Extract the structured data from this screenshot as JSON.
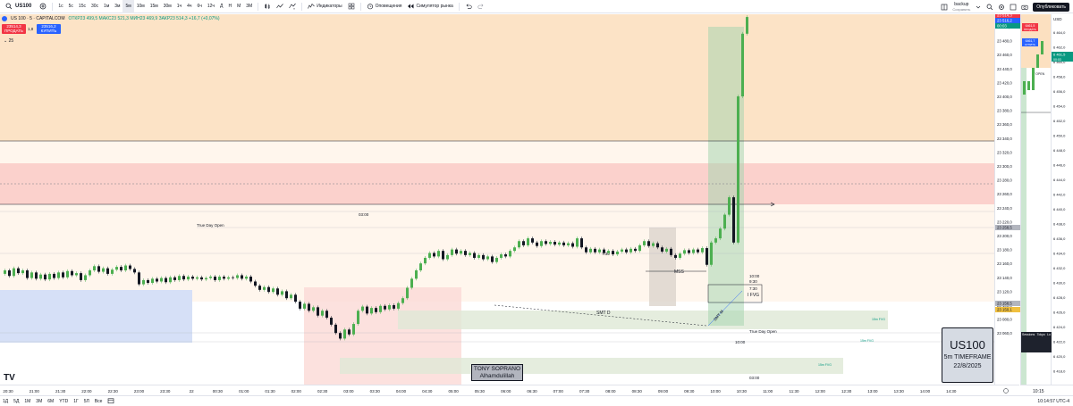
{
  "toolbar": {
    "symbol": "US100",
    "timeframes": [
      "1с",
      "5с",
      "15с",
      "30с",
      "1м",
      "3м",
      "5м",
      "10м",
      "15м",
      "30м",
      "1ч",
      "4ч",
      "6ч",
      "12ч",
      "Д",
      "Н",
      "М",
      "3М"
    ],
    "active_timeframe": "5м",
    "indicators_label": "Индикаторы",
    "alerts_label": "Оповещения",
    "replay_label": "Симулятор рынка",
    "layout_name": "backup",
    "layout_status": "Сохранить",
    "publish_label": "Опубликовать"
  },
  "legend": {
    "title": "US 100 · 5 · CAPITALCOM",
    "ohlc": "ОТКР23 499,5  МАКС23 521,3  МИН23 469,9  ЗАКР23 514,3  +16,7 (+0,07%)"
  },
  "trade": {
    "sell_price": "23514,3",
    "sell_label": "ПРОДАТЬ",
    "buy_price": "23516,2",
    "buy_label": "КУПИТЬ",
    "spread": "1,8",
    "indicators_count": "25"
  },
  "price_axis": {
    "currency": "USD",
    "ticks": [
      "23 500,0",
      "23 480,0",
      "23 460,0",
      "23 440,0",
      "23 420,0",
      "23 400,0",
      "23 380,0",
      "23 360,0",
      "23 340,0",
      "23 320,0",
      "23 300,0",
      "23 280,0",
      "23 260,0",
      "23 240,0",
      "23 220,0",
      "23 200,0",
      "23 180,0",
      "23 160,0",
      "23 140,0",
      "23 120,0",
      "23 100,0",
      "23 080,0",
      "23 060,0"
    ],
    "label_sell": "23 514,3",
    "label_buy": "23 516,2",
    "label_timer": "00:03",
    "label_mid": "23 258,5",
    "label_low1": "23 158,5",
    "label_low2": "23 150,1"
  },
  "time_axis": {
    "ticks": [
      "20:30",
      "21:00",
      "21:30",
      "22:00",
      "22:30",
      "23:00",
      "23:30",
      "22",
      "00:30",
      "01:00",
      "01:30",
      "02:00",
      "02:30",
      "03:00",
      "03:30",
      "04:00",
      "04:30",
      "05:00",
      "05:30",
      "06:00",
      "06:30",
      "07:00",
      "07:30",
      "08:00",
      "08:30",
      "09:00",
      "09:30",
      "10:00",
      "10:30",
      "11:00",
      "11:30",
      "12:00",
      "12:30",
      "13:00",
      "13:30",
      "14:00",
      "14:30"
    ]
  },
  "annotations": {
    "true_day_open_1": "True Day Open",
    "true_day_open_2": "True Day Open",
    "time_0300": "03:00",
    "time_0730": "7:30",
    "time_1000a": "10:00",
    "time_930": "9:30",
    "time_730b": "7:30",
    "time_1000b": "10:00",
    "time_0300b": "03:00",
    "mss": "MSS",
    "ifvg": "I FVG",
    "smt_d": "SMT D",
    "smt_m": "SMT M",
    "fvg_15m_1": "15m FVG",
    "fvg_15m_2": "15m FVG",
    "fvg_15m_3": "15m FVG"
  },
  "tony_box": {
    "line1": "TONY SOPRANO",
    "line2": "Alhamdulillah"
  },
  "info_box": {
    "symbol": "US100",
    "timeframe": "5m TIMEFRAME",
    "date": "22/8/2025"
  },
  "chart2": {
    "currency": "USD",
    "sell_price": "6461,5",
    "sell_label": "ПРОДАТЬ",
    "buy_price": "6461,7",
    "buy_label": "КУПИТЬ",
    "label_open": "W OPEN",
    "ticks": [
      "6 464,0",
      "6 462,0",
      "6 460,0",
      "6 458,0",
      "6 456,0",
      "6 454,0",
      "6 452,0",
      "6 450,0",
      "6 448,0",
      "6 446,0",
      "6 444,0",
      "6 442,0",
      "6 440,0",
      "6 438,0",
      "6 436,0",
      "6 434,0",
      "6 432,0",
      "6 430,0",
      "6 428,0",
      "6 426,0",
      "6 424,0",
      "6 422,0",
      "6 420,0",
      "6 418,0"
    ],
    "price_label": "6 461,5",
    "timer": "00:03",
    "time_tick": "10:15",
    "table_headers": [
      "Sessions",
      "Tokyo",
      "Lo"
    ],
    "table_values": [
      "",
      "",
      ""
    ]
  },
  "bottom_bar": {
    "ranges": [
      "1Д",
      "5Д",
      "1М",
      "3М",
      "6М",
      "YTD",
      "1Г",
      "5Л",
      "Все"
    ],
    "clock": "10:14:57 UTC-4"
  },
  "colors": {
    "up": "#4caf50",
    "down": "#131722",
    "premium_zone": "#fce0c0",
    "discount_red": "#fbd1cc",
    "asia_blue": "#d6e0f7"
  }
}
